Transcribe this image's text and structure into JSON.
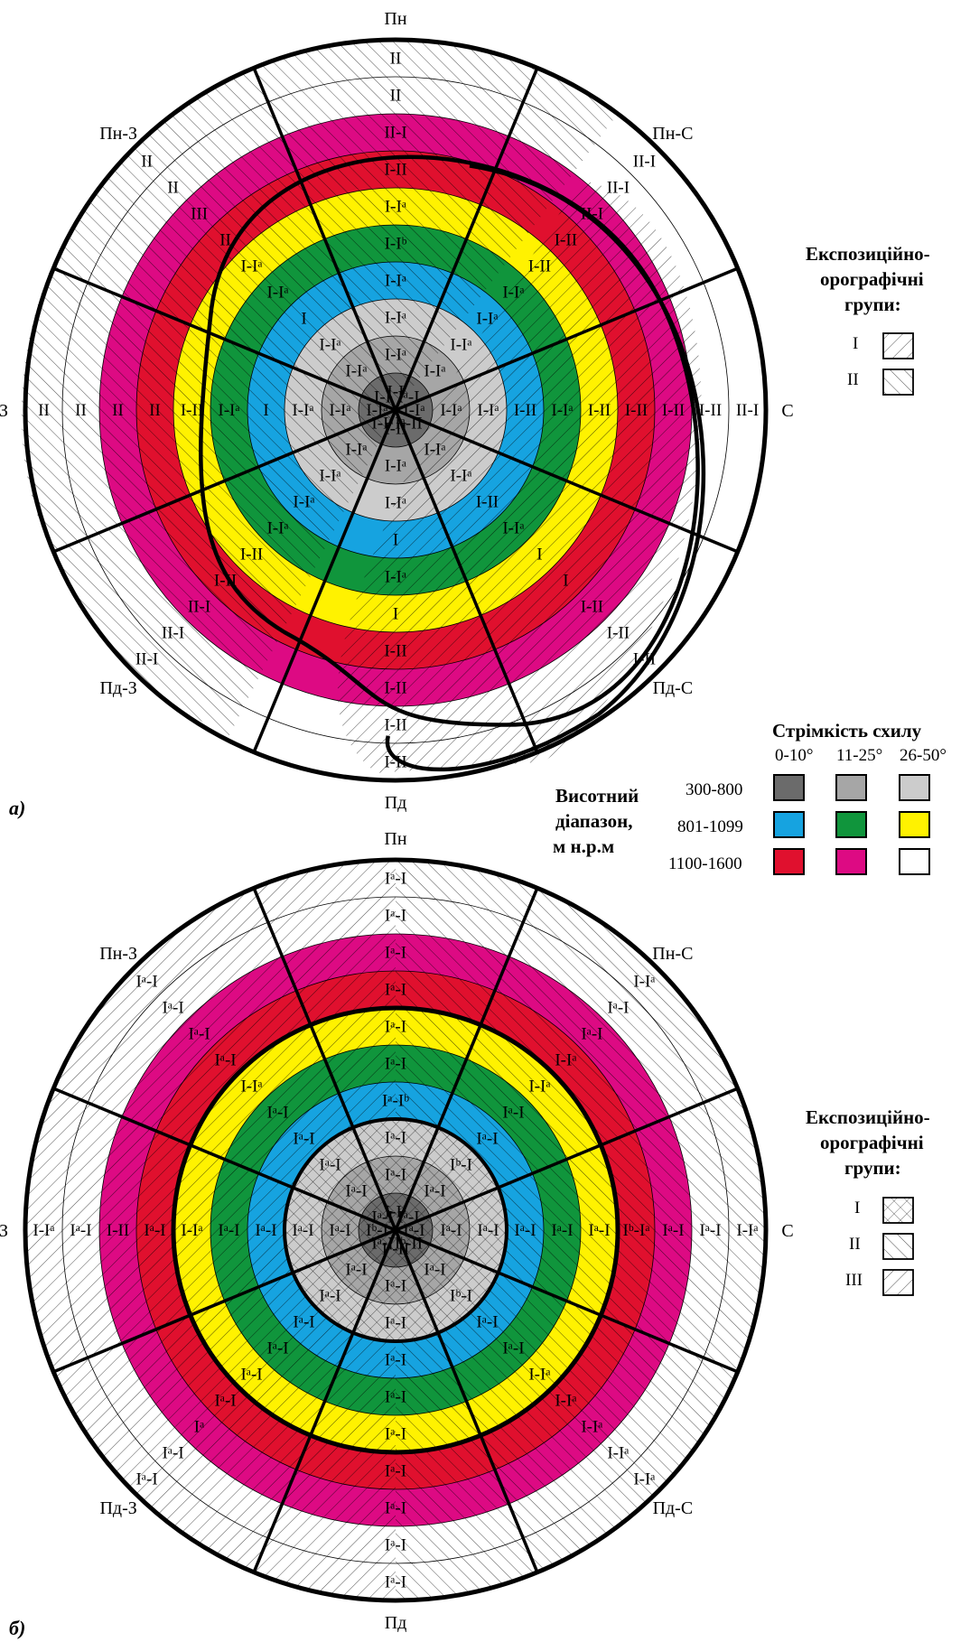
{
  "directions": {
    "top": "Пн",
    "top_right": "Пн-С",
    "right": "С",
    "bottom_right": "Пд-С",
    "bottom": "Пд",
    "bottom_left": "Пд-З",
    "left": "З",
    "top_left": "Пн-З"
  },
  "zone_colors": {
    "z300_800_flat": "#6b6b6b",
    "z300_800_mid": "#a6a6a6",
    "z300_800_steep": "#cccccc",
    "z801_1099_flat": "#16a3e0",
    "z801_1099_mid": "#10953c",
    "z801_1099_steep": "#fff200",
    "z1100_1600_flat": "#e0102e",
    "z1100_1600_mid": "#dd0a83",
    "z1100_1600_steep": "#ffffff"
  },
  "panel_a": {
    "id": "а)",
    "labels_by_sector": [
      [
        "I-I",
        "I-Iᵃ",
        "I-Iᵃ",
        "I-Iᵃ",
        "I-Iᵇ",
        "I-Iᵃ",
        "I-II",
        "II-I",
        "II",
        "II"
      ],
      [
        "Iᵃ-I",
        "I-Iᵃ",
        "I-Iᵃ",
        "I-Iᵃ",
        "I-Iᵃ",
        "I-II",
        "I-II",
        "II-I",
        "II-I",
        "II-I"
      ],
      [
        "I-Iᵃ",
        "I-Iᵃ",
        "I-Iᵃ",
        "I-II",
        "I-Iᵃ",
        "I-II",
        "I-II",
        "I-II",
        "I-II",
        "II-I"
      ],
      [
        "Iᵃ-II",
        "I-Iᵃ",
        "I-Iᵃ",
        "I-II",
        "I-Iᵃ",
        "I",
        "I",
        "I-II",
        "I-II",
        "I-II"
      ],
      [
        "I-II",
        "I-Iᵃ",
        "I-Iᵃ",
        "I",
        "I-Iᵃ",
        "I",
        "I-II",
        "I-II",
        "I-II",
        "I-II"
      ],
      [
        "I-Iᵃ",
        "I-Iᵃ",
        "I-Iᵃ",
        "I-Iᵃ",
        "I-Iᵃ",
        "I-II",
        "I-II",
        "II-I",
        "II-I",
        "II-I"
      ],
      [
        "I-Iᵃ",
        "I-Iᵃ",
        "I-Iᵃ",
        "I",
        "I-Iᵃ",
        "I-II",
        "II",
        "II",
        "II",
        "II"
      ],
      [
        "I-I",
        "I-Iᵃ",
        "I-Iᵃ",
        "I",
        "I-Iᵃ",
        "I-Iᵃ",
        "II",
        "III",
        "II",
        "II"
      ]
    ]
  },
  "panel_b": {
    "id": "б)",
    "labels_by_sector": [
      [
        "I-Iᵃ",
        "Iᵃ-I",
        "Iᵃ-I",
        "Iᵃ-Iᵇ",
        "Iᵃ-I",
        "Iᵃ-I",
        "Iᵃ-I",
        "Iᵃ-I",
        "Iᵃ-I",
        "Iᵃ-I"
      ],
      [
        "Iᵃ-I",
        "Iᵃ-I",
        "Iᵇ-I",
        "Iᵃ-I",
        "Iᵃ-I",
        "I-Iᵃ",
        "I-Iᵃ",
        "Iᵃ-I",
        "Iᵃ-I",
        "I-Iᵃ"
      ],
      [
        "Iᵃ-I",
        "Iᵃ-I",
        "Iᵃ-I",
        "Iᵃ-I",
        "Iᵃ-I",
        "Iᵃ-I",
        "Iᵇ-Iᵃ",
        "Iᵃ-I",
        "Iᵃ-I",
        "I-Iᵃ"
      ],
      [
        "Iᵇ-II",
        "Iᵃ-I",
        "Iᵇ-I",
        "Iᵃ-I",
        "Iᵃ-I",
        "I-Iᵃ",
        "I-Iᵃ",
        "I-Iᵃ",
        "I-Iᵃ",
        "I-Iᵃ"
      ],
      [
        "Iᵃ-II",
        "Iᵃ-I",
        "Iᵃ-I",
        "Iᵃ-I",
        "Iᵃ-I",
        "Iᵃ-I",
        "Iᵃ-I",
        "Iᵃ-I",
        "Iᵃ-I",
        "Iᵃ-I"
      ],
      [
        "Iᵃ-I",
        "Iᵃ-I",
        "Iᵃ-I",
        "Iᵃ-I",
        "Iᵃ-I",
        "Iᵃ-I",
        "Iᵃ-I",
        "Iᵃ",
        "Iᵃ-I",
        "Iᵃ-I"
      ],
      [
        "Iᵇ-I",
        "Iᵃ-I",
        "Iᵃ-I",
        "Iᵃ-I",
        "Iᵃ-I",
        "I-Iᵃ",
        "Iᵃ-I",
        "I-II",
        "Iᵃ-I",
        "I-Iᵃ"
      ],
      [
        "Iᵃ-I",
        "Iᵃ-I",
        "Iᵃ-I",
        "Iᵃ-I",
        "Iᵃ-I",
        "I-Iᵃ",
        "Iᵃ-I",
        "Iᵃ-I",
        "Iᵃ-I",
        "Iᵃ-I"
      ]
    ]
  },
  "legend_slope": {
    "title": "Стрімкість схилу",
    "columns": [
      "0-10°",
      "11-25°",
      "26-50°"
    ]
  },
  "legend_altitude": {
    "title_lines": [
      "Висотний",
      "діапазон,",
      "м н.р.м"
    ],
    "rows": [
      "300-800",
      "801-1099",
      "1100-1600"
    ]
  },
  "legend_expo_a": {
    "title_lines": [
      "Експозиційно-",
      "орографічні",
      "групи:"
    ],
    "items": [
      "I",
      "II"
    ]
  },
  "legend_expo_b": {
    "title_lines": [
      "Експозиційно-",
      "орографічні",
      "групи:"
    ],
    "items": [
      "I",
      "II",
      "III"
    ]
  }
}
